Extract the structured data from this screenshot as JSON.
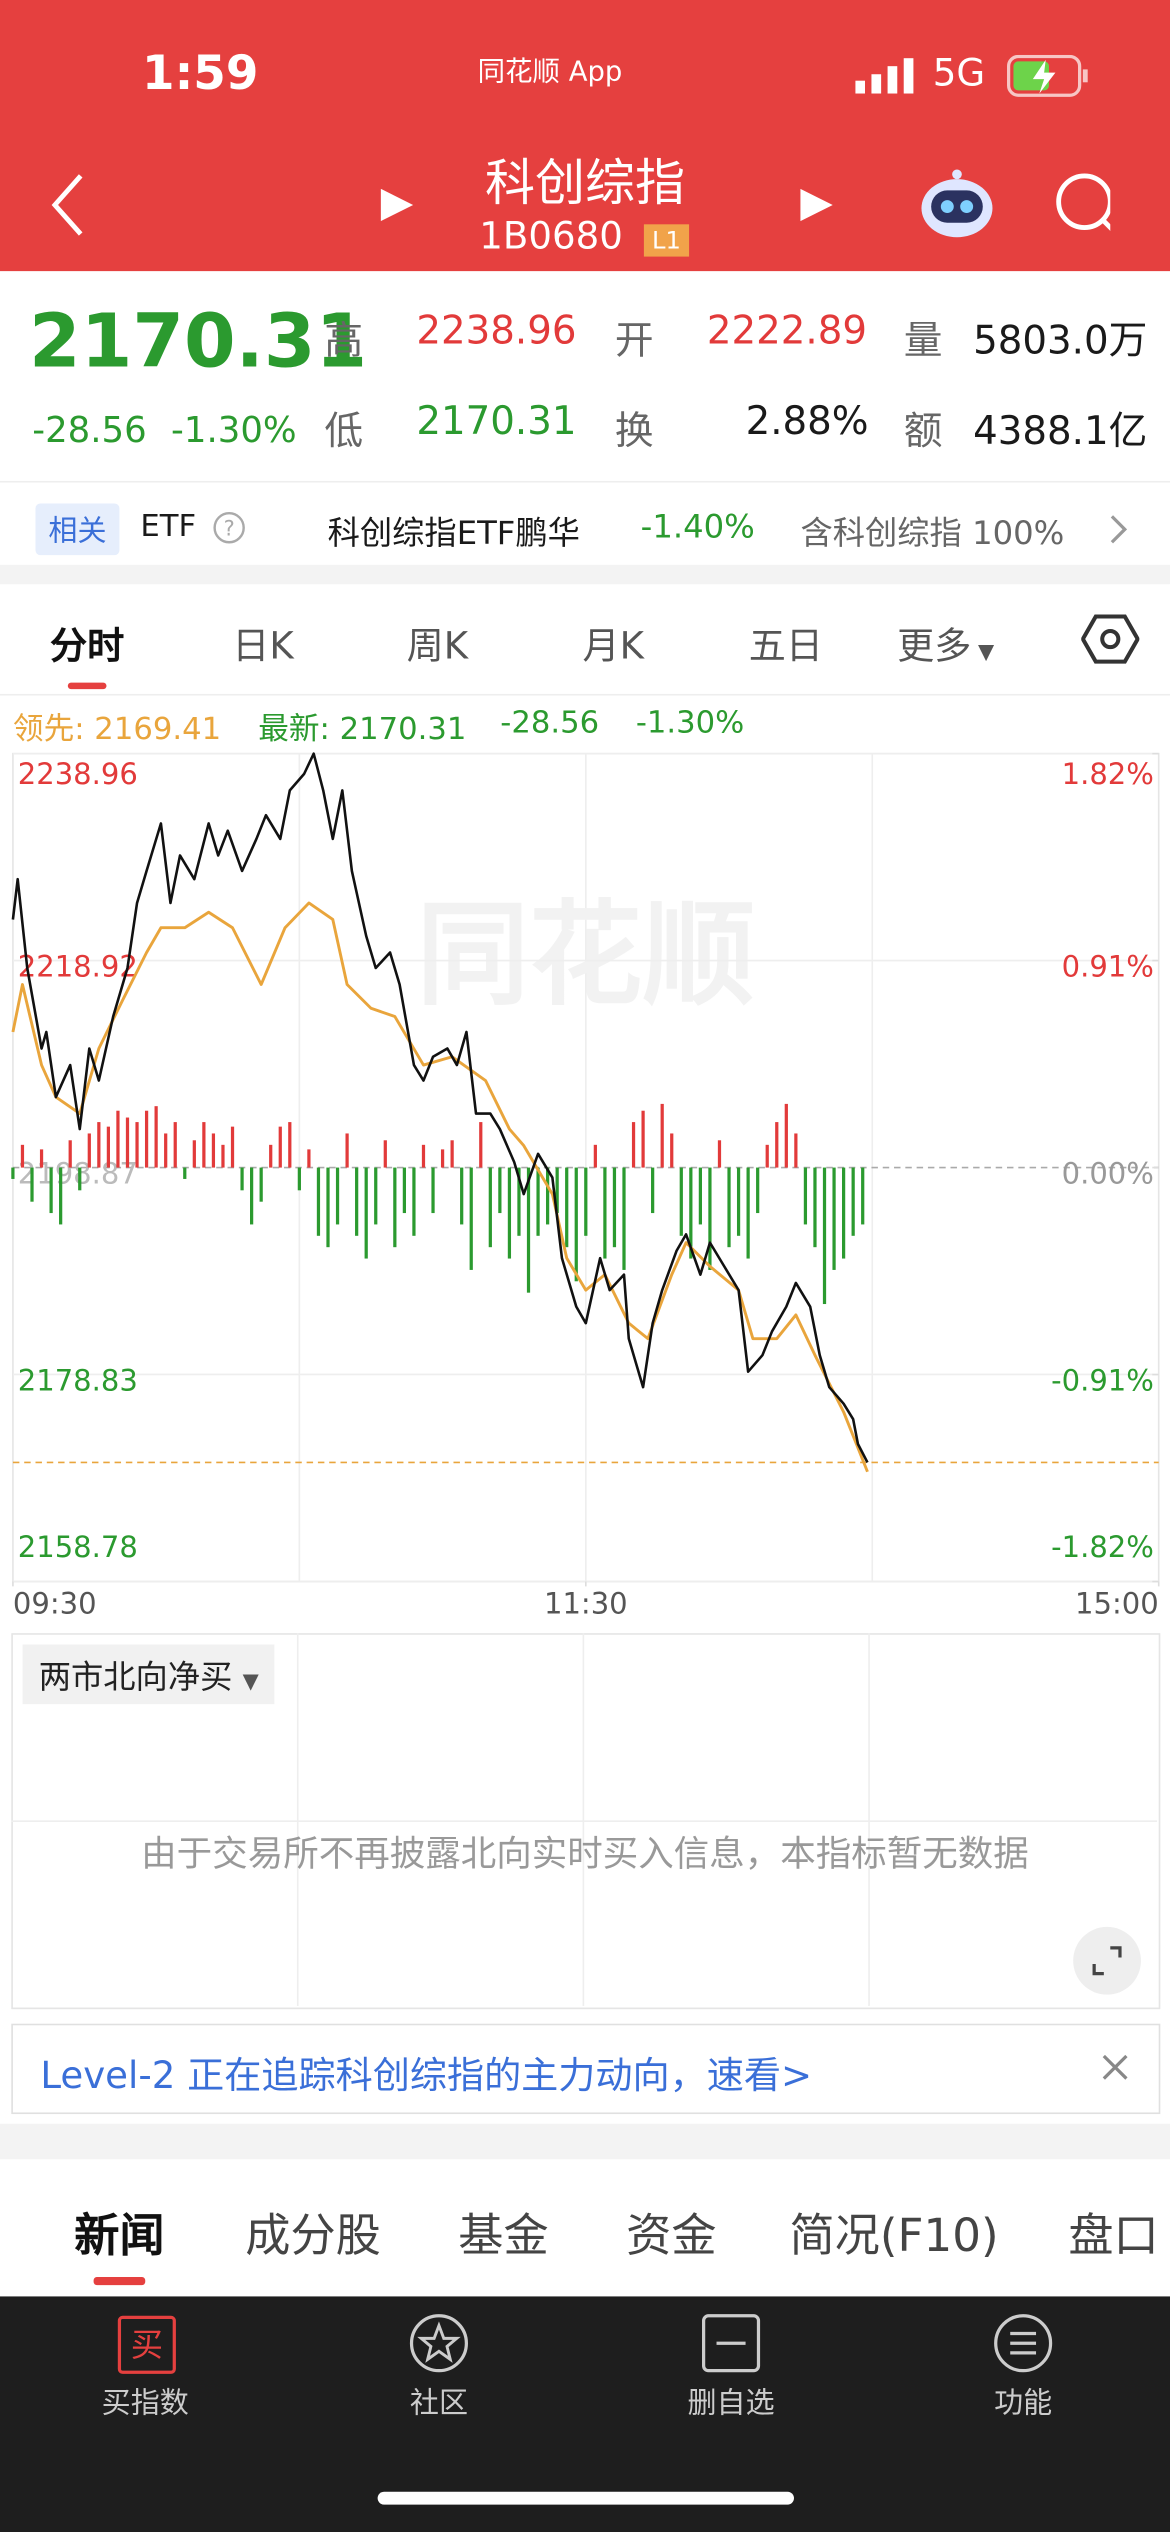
{
  "status": {
    "time": "1:59",
    "app": "同花顺 App",
    "network": "5G"
  },
  "header": {
    "title": "科创综指",
    "code": "1B0680",
    "badge": "L1"
  },
  "quote": {
    "price": "2170.31",
    "change": "-28.56",
    "pct": "-1.30%",
    "fields": [
      {
        "label": "高",
        "value": "2238.96"
      },
      {
        "label": "低",
        "value": "2170.31"
      },
      {
        "label": "开",
        "value": "2222.89"
      },
      {
        "label": "换",
        "value": "2.88%"
      },
      {
        "label": "量",
        "value": "5803.0万"
      },
      {
        "label": "额",
        "value": "4388.1亿"
      }
    ]
  },
  "related": {
    "tag": "相关",
    "etf": "ETF",
    "fund": "科创综指ETF鹏华",
    "fund_change": "-1.40%",
    "holding": "含科创综指 100%"
  },
  "tabs": [
    "分时",
    "日K",
    "周K",
    "月K",
    "五日",
    "更多"
  ],
  "chart_data": {
    "type": "line",
    "legend": [
      "领先: 2169.41",
      "最新: 2170.31",
      "-28.56",
      "-1.30%"
    ],
    "watermark": "同花顺",
    "xlim": [
      0,
      240
    ],
    "xticks": [
      {
        "value": 0,
        "label": "09:30"
      },
      {
        "value": 120,
        "label": "11:30"
      },
      {
        "value": 240,
        "label": "15:00"
      }
    ],
    "ylim": [
      2158.78,
      2238.96
    ],
    "yticks": [
      2238.96,
      2218.92,
      2198.87,
      2178.83,
      2158.78
    ],
    "y2lim": [
      -1.82,
      1.82
    ],
    "y2ticks": [
      {
        "value": 1.82,
        "label": "1.82%"
      },
      {
        "value": 0.91,
        "label": "0.91%"
      },
      {
        "value": 0,
        "label": "0.00%"
      },
      {
        "value": -0.91,
        "label": "-0.91%"
      },
      {
        "value": -1.82,
        "label": "-1.82%"
      }
    ],
    "series": [
      {
        "color": "#e9a53c",
        "x": [
          0,
          2,
          6,
          9,
          14,
          18,
          23,
          28,
          31,
          36,
          41,
          46,
          52,
          57,
          62,
          67,
          70,
          75,
          80,
          86,
          92,
          99,
          104,
          107,
          113,
          116,
          120,
          124,
          129,
          133,
          138,
          141,
          146,
          152,
          155,
          160,
          164,
          168,
          174,
          179
        ],
        "values": [
          2212.0,
          2216.6,
          2208.8,
          2205.7,
          2204.1,
          2210.4,
          2215.1,
          2219.7,
          2222.1,
          2222.1,
          2223.6,
          2222.1,
          2216.6,
          2222.1,
          2224.5,
          2222.9,
          2216.6,
          2214.3,
          2213.5,
          2208.8,
          2209.6,
          2207.3,
          2202.6,
          2201.0,
          2196.3,
          2190.1,
          2187.0,
          2188.5,
          2183.8,
          2182.3,
          2188.5,
          2191.6,
          2189.3,
          2187.0,
          2182.3,
          2182.3,
          2184.6,
          2180.7,
          2175.2,
          2169.41
        ]
      },
      {
        "color": "#111111",
        "x": [
          0,
          1,
          3,
          6,
          7,
          9,
          12,
          14,
          16,
          18,
          21,
          24,
          26,
          28,
          31,
          33,
          35,
          38,
          41,
          43,
          45,
          48,
          51,
          53,
          56,
          58,
          61,
          63,
          65,
          67,
          69,
          71,
          74,
          76,
          79,
          81,
          84,
          86,
          88,
          91,
          93,
          95,
          97,
          100,
          102,
          105,
          107,
          110,
          113,
          115,
          118,
          120,
          123,
          125,
          128,
          129,
          132,
          134,
          136,
          139,
          141,
          144,
          146,
          149,
          152,
          154,
          157,
          159,
          162,
          164,
          167,
          169,
          171,
          174,
          176,
          177,
          179
        ],
        "values": [
          2222.89,
          2226.8,
          2218.2,
          2210.4,
          2212.0,
          2205.7,
          2208.8,
          2202.6,
          2210.4,
          2207.3,
          2213.5,
          2218.2,
          2224.5,
          2227.6,
          2232.2,
          2224.5,
          2229.1,
          2226.8,
          2232.2,
          2229.1,
          2231.5,
          2227.6,
          2230.7,
          2233.0,
          2230.7,
          2235.4,
          2237.0,
          2238.96,
          2235.4,
          2230.7,
          2235.4,
          2227.6,
          2221.3,
          2218.2,
          2219.7,
          2216.6,
          2208.8,
          2207.3,
          2209.6,
          2210.4,
          2208.8,
          2212.0,
          2204.1,
          2204.1,
          2202.6,
          2199.4,
          2196.3,
          2200.2,
          2197.9,
          2190.1,
          2185.4,
          2183.8,
          2190.1,
          2187.0,
          2188.5,
          2182.3,
          2177.6,
          2183.8,
          2187.0,
          2190.8,
          2192.4,
          2188.5,
          2191.6,
          2189.3,
          2187.0,
          2179.1,
          2180.7,
          2183.0,
          2185.4,
          2187.7,
          2185.4,
          2180.7,
          2177.6,
          2176.0,
          2174.5,
          2172.1,
          2170.31
        ]
      }
    ],
    "bars": {
      "axis": "y2",
      "up_color": "#e23a3a",
      "down_color": "#2b9a2f",
      "x": [
        0,
        2,
        4,
        6,
        8,
        10,
        12,
        14,
        16,
        18,
        20,
        22,
        24,
        26,
        28,
        30,
        32,
        34,
        36,
        38,
        40,
        42,
        44,
        46,
        48,
        50,
        52,
        54,
        56,
        58,
        60,
        62,
        64,
        66,
        68,
        70,
        72,
        74,
        76,
        78,
        80,
        82,
        84,
        86,
        88,
        90,
        92,
        94,
        96,
        98,
        100,
        102,
        104,
        106,
        108,
        110,
        112,
        114,
        116,
        118,
        120,
        122,
        124,
        126,
        128,
        130,
        132,
        134,
        136,
        138,
        140,
        142,
        144,
        146,
        148,
        150,
        152,
        154,
        156,
        158,
        160,
        162,
        164,
        166,
        168,
        170,
        172,
        174,
        176,
        178
      ],
      "values": [
        -0.05,
        0.1,
        -0.15,
        0.08,
        -0.2,
        -0.25,
        0.12,
        -0.1,
        0.15,
        0.2,
        0.18,
        0.25,
        0.22,
        0.2,
        0.25,
        0.27,
        0.15,
        0.2,
        -0.05,
        0.12,
        0.2,
        0.15,
        0.1,
        0.18,
        -0.1,
        -0.25,
        -0.15,
        0.1,
        0.18,
        0.2,
        -0.1,
        0.08,
        -0.3,
        -0.35,
        -0.25,
        0.15,
        -0.3,
        -0.4,
        -0.25,
        0.12,
        -0.35,
        -0.2,
        -0.3,
        0.1,
        -0.2,
        0.08,
        0.12,
        -0.25,
        -0.45,
        0.2,
        -0.35,
        -0.2,
        -0.4,
        -0.3,
        -0.55,
        -0.3,
        -0.25,
        -0.2,
        -0.35,
        -0.5,
        -0.3,
        0.1,
        -0.4,
        -0.35,
        -0.45,
        0.2,
        0.25,
        -0.2,
        0.28,
        0.15,
        -0.3,
        -0.4,
        -0.25,
        -0.45,
        0.12,
        -0.35,
        -0.3,
        -0.4,
        -0.2,
        0.1,
        0.2,
        0.28,
        0.15,
        -0.25,
        -0.35,
        -0.6,
        -0.45,
        -0.4,
        -0.3,
        -0.25
      ]
    }
  },
  "panel": {
    "dropdown": "两市北向净买",
    "message": "由于交易所不再披露北向实时买入信息，本指标暂无数据"
  },
  "banner": {
    "text": "Level-2 正在追踪科创综指的主力动向，速看>"
  },
  "news_tabs": [
    "新闻",
    "成分股",
    "基金",
    "资金",
    "简况(F10)",
    "盘口"
  ],
  "bottom_nav": [
    {
      "icon": "买",
      "label": "买指数"
    },
    {
      "label": "社区"
    },
    {
      "label": "删自选"
    },
    {
      "label": "功能"
    }
  ]
}
